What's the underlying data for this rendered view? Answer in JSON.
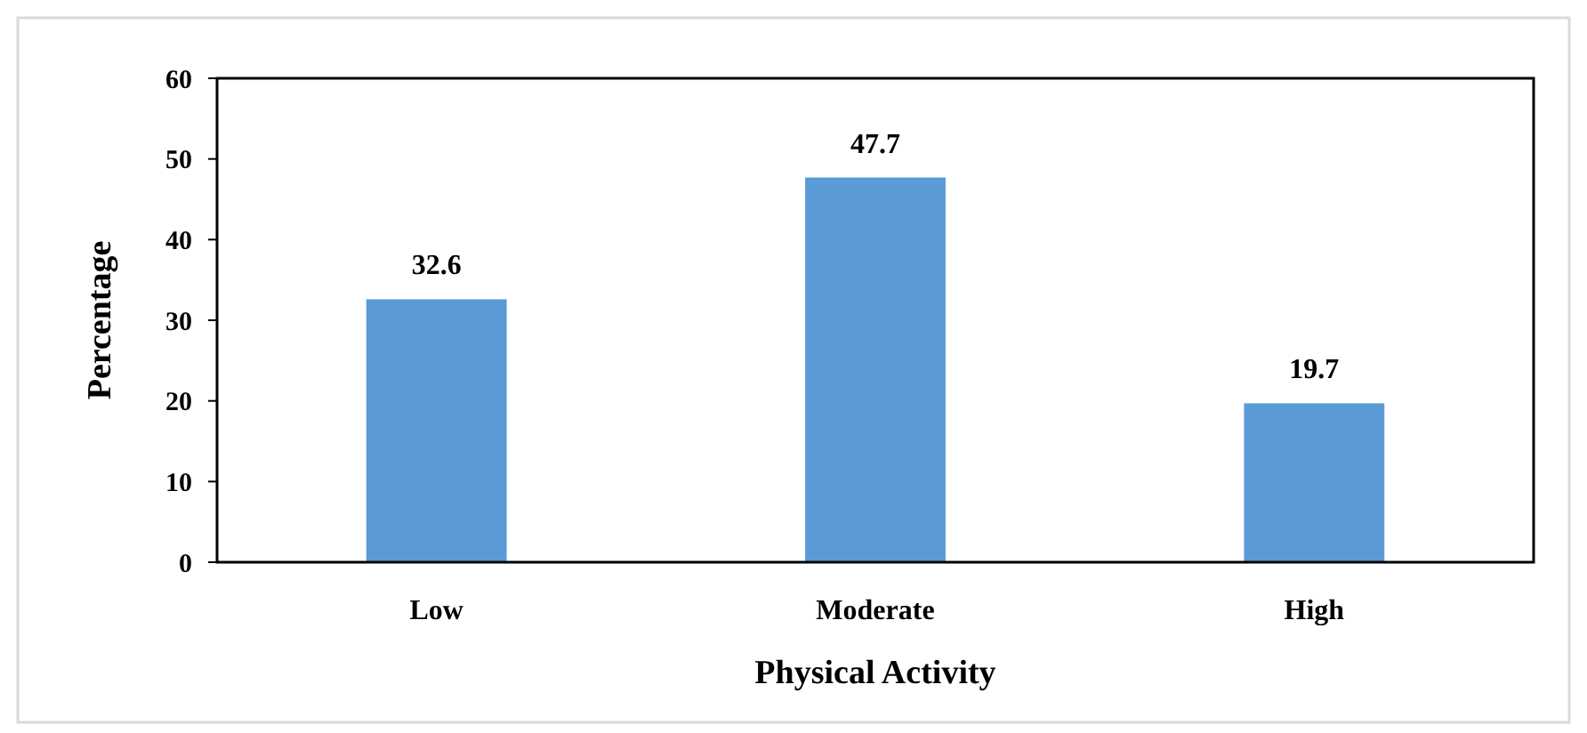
{
  "chart_data": {
    "type": "bar",
    "xlabel": "Physical Activity",
    "ylabel": "Percentage",
    "categories": [
      "Low",
      "Moderate",
      "High"
    ],
    "values": [
      32.6,
      47.7,
      19.7
    ],
    "color": "#5b9bd5",
    "ylim": [
      0,
      60
    ],
    "yticks": [
      0,
      10,
      20,
      30,
      40,
      50,
      60
    ],
    "grid": false,
    "data_labels": true
  }
}
